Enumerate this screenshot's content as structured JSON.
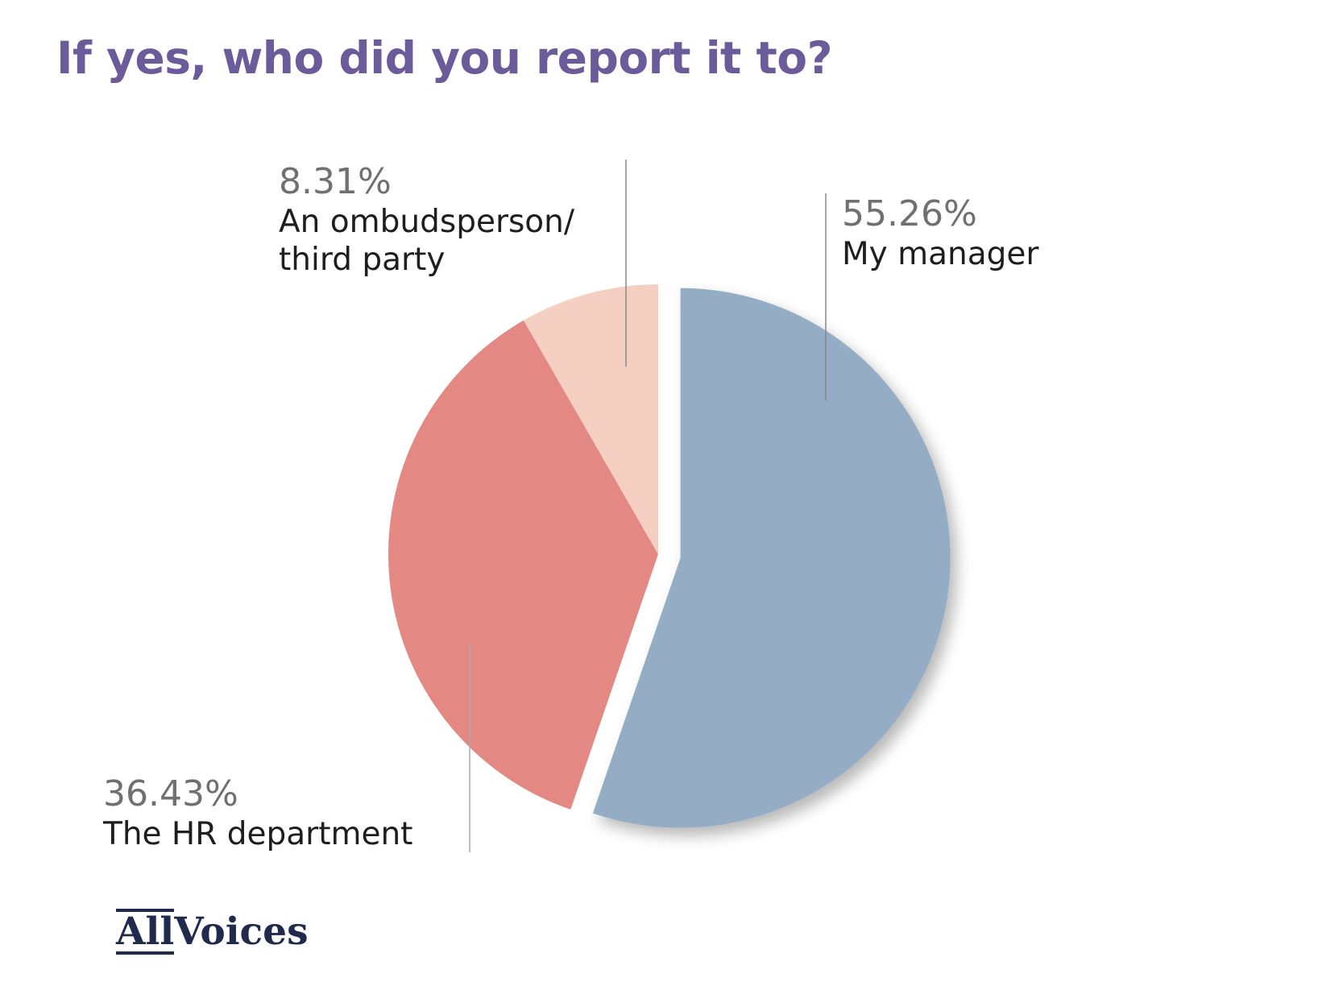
{
  "title": "If yes, who did you report it to?",
  "logo": {
    "part1": "All",
    "part2": "Voices"
  },
  "chart_data": {
    "type": "pie",
    "title": "If yes, who did you report it to?",
    "slices": [
      {
        "label": "My manager",
        "value": 55.26,
        "value_label": "55.26%",
        "color": "#94adc4"
      },
      {
        "label": "The HR department",
        "value": 36.43,
        "value_label": "36.43%",
        "color": "#e38883"
      },
      {
        "label": "An ombudsperson/ third party",
        "value": 8.31,
        "value_label": "8.31%",
        "color": "#f4cfc2"
      }
    ],
    "start_angle_deg": 0,
    "direction": "clockwise",
    "legend": "callouts",
    "exploded_slice": "My manager"
  }
}
